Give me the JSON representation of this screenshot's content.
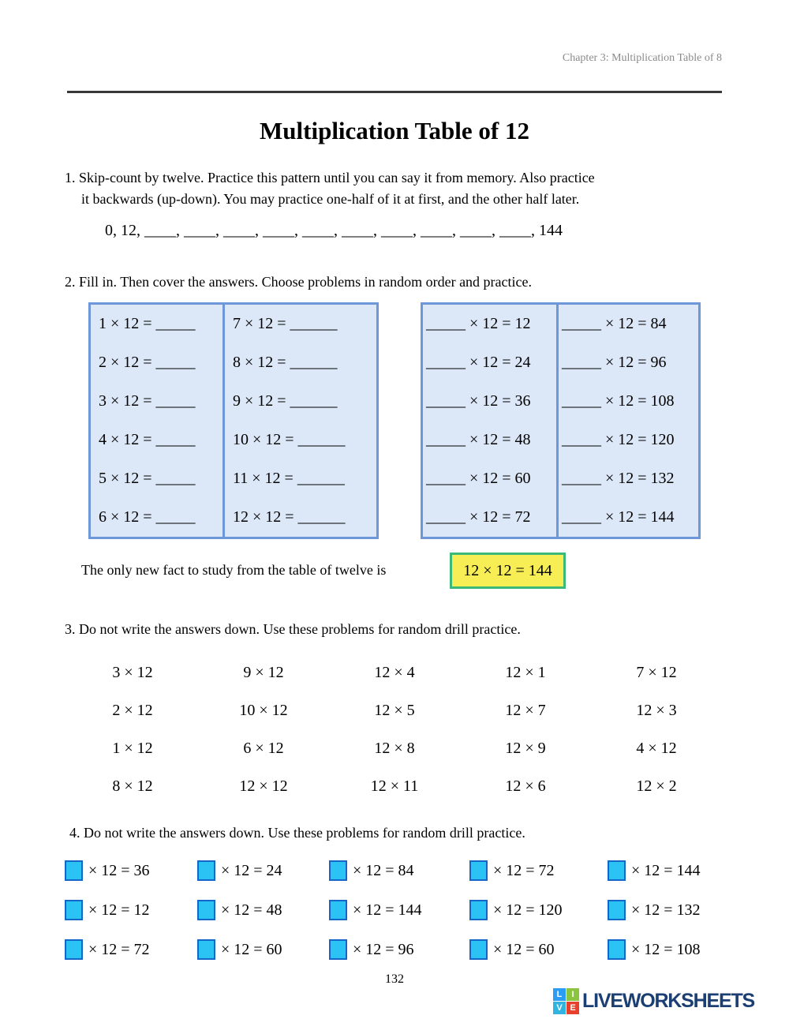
{
  "page": {
    "chapter_header": "Chapter 3: Multiplication Table of 8",
    "title": "Multiplication Table of 12",
    "page_number": "132"
  },
  "section1": {
    "instruction_line1": "1. Skip-count by twelve. Practice this pattern until you can say it from memory. Also practice",
    "instruction_line2": "it backwards (up-down). You may practice one-half of it at first, and the other half later.",
    "sequence": "0, 12,  ____,  ____,  ____,  ____, ____,  ____,  ____,  ____,  ____, ____, 144"
  },
  "section2": {
    "instruction": "2. Fill in. Then cover the answers. Choose problems in random order and practice.",
    "left_table": {
      "col1": [
        "1 × 12 = _____",
        "2 × 12 = _____",
        "3 × 12 = _____",
        "4 × 12 = _____",
        "5 × 12 = _____",
        "6 × 12 = _____"
      ],
      "col2": [
        "7 × 12 = ______",
        "8 × 12 = ______",
        "9 × 12 = ______",
        "10 × 12 = ______",
        "11 × 12 = ______",
        "12 × 12 = ______"
      ]
    },
    "right_table": {
      "col1": [
        "_____ × 12 = 12",
        "_____ × 12 = 24",
        "_____ × 12 = 36",
        "_____ × 12 = 48",
        "_____ × 12 = 60",
        "_____ × 12 = 72"
      ],
      "col2": [
        "_____ × 12 = 84",
        "_____ × 12 = 96",
        "_____ × 12 = 108",
        "_____ × 12 = 120",
        "_____ × 12 = 132",
        "_____ × 12 = 144"
      ]
    },
    "note_text": "The only new fact to study from the table of twelve is",
    "highlight_fact": "12 × 12 = 144"
  },
  "section3": {
    "instruction": "3. Do not write the answers down. Use these problems for random drill practice.",
    "rows": [
      [
        "3 × 12",
        "9 × 12",
        "12 × 4",
        "12 × 1",
        "7 × 12"
      ],
      [
        "2 × 12",
        "10 × 12",
        "12 × 5",
        "12 × 7",
        "12 × 3"
      ],
      [
        "1 × 12",
        "6 × 12",
        "12 × 8",
        "12 × 9",
        "4 × 12"
      ],
      [
        "8 × 12",
        "12 × 12",
        "12 × 11",
        "12 × 6",
        "12 × 2"
      ]
    ]
  },
  "section4": {
    "instruction": "4. Do not write the answers down. Use these problems for random drill practice.",
    "rows": [
      [
        "× 12 = 36",
        "× 12 = 24",
        "× 12 = 84",
        "× 12 = 72",
        "× 12 = 144"
      ],
      [
        "× 12 = 12",
        "× 12 = 48",
        "× 12 = 144",
        "× 12 = 120",
        "× 12 = 132"
      ],
      [
        "× 12 = 72",
        "× 12 = 60",
        "× 12 = 96",
        "× 12 = 60",
        "× 12 = 108"
      ]
    ]
  },
  "footer": {
    "page_number": "132",
    "logo_text": "LIVEWORKSHEETS",
    "logo_squares": [
      {
        "letter": "L",
        "color": "#2b9df4"
      },
      {
        "letter": "I",
        "color": "#8bc53f"
      },
      {
        "letter": "V",
        "color": "#31b5e0"
      },
      {
        "letter": "E",
        "color": "#e8402a"
      }
    ]
  },
  "colors": {
    "table_fill": "#dce7f8",
    "table_border": "#6e97d9",
    "highlight_fill": "#f7ee55",
    "highlight_border": "#3cb878",
    "answer_box_fill": "#2bc3f3",
    "answer_box_border": "#1467c8",
    "header_gray": "#8a8a8a",
    "logo_navy": "#1b3f73"
  }
}
